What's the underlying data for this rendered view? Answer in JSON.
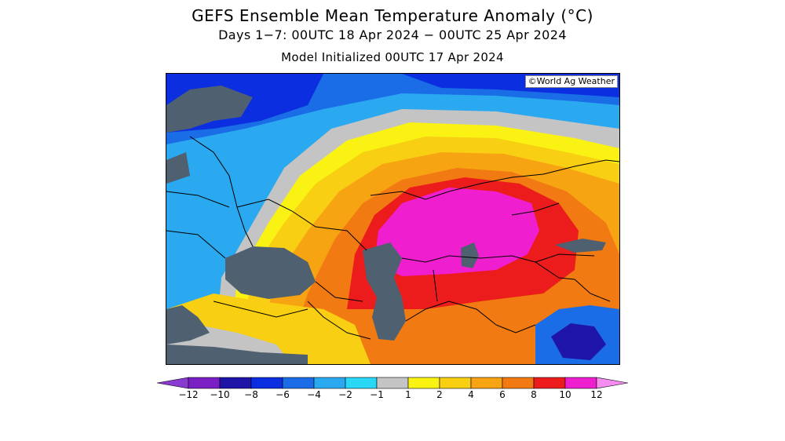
{
  "title": "GEFS Ensemble Mean Temperature Anomaly (°C)",
  "subtitle": "Days 1−7: 00UTC 18 Apr 2024 − 00UTC 25 Apr 2024",
  "init_line": "Model Initialized 00UTC 17 Apr 2024",
  "credit": "©World Ag Weather",
  "legend": {
    "ticks": [
      "−12",
      "−10",
      "−8",
      "−6",
      "−4",
      "−2",
      "−1",
      "1",
      "2",
      "4",
      "6",
      "8",
      "10",
      "12"
    ],
    "colors": [
      "#7a1fc4",
      "#1f14a8",
      "#0b2ee0",
      "#1a6de6",
      "#2aa8f0",
      "#29d8f6",
      "#c4c4c4",
      "#f9f213",
      "#f8cf12",
      "#f7a413",
      "#f17a12",
      "#ec1c1c",
      "#ef1fcf"
    ],
    "under_color": "#8a3ad0",
    "over_color": "#f58cf0"
  },
  "map": {
    "land_mask_color": "#4f6070",
    "border_color": "#000000"
  }
}
